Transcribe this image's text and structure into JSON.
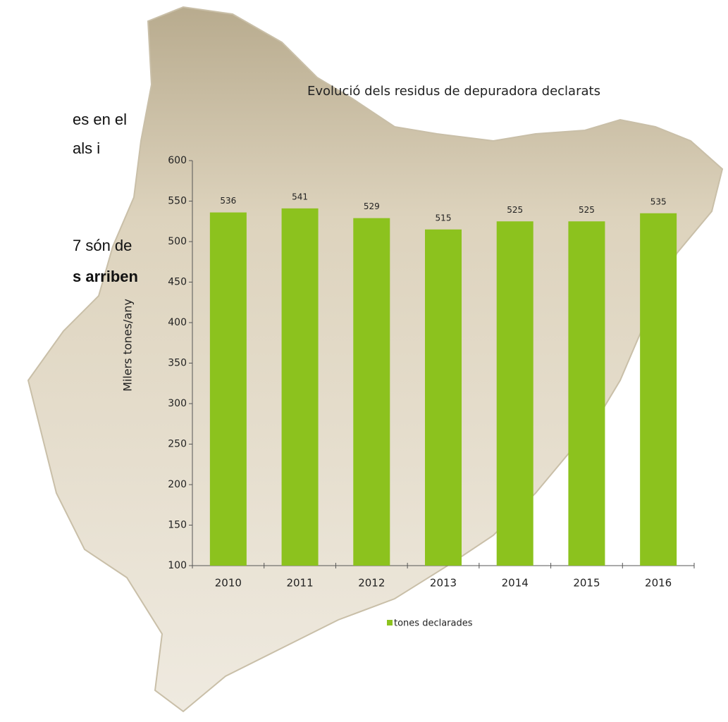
{
  "side_text": [
    "es en el",
    "als i",
    "7 són de",
    "s arriben"
  ],
  "chart_data": {
    "type": "bar",
    "title": "Evolució dels residus de depuradora declarats",
    "y_label": "Milers tones/any",
    "categories": [
      "2010",
      "2011",
      "2012",
      "2013",
      "2014",
      "2015",
      "2016"
    ],
    "series": [
      {
        "name": "tones declarades",
        "color": "#8cc21e",
        "values": [
          536,
          541,
          529,
          515,
          525,
          525,
          535
        ]
      }
    ],
    "ylim": [
      100,
      600
    ],
    "yticks": [
      100,
      150,
      200,
      250,
      300,
      350,
      400,
      450,
      500,
      550,
      600
    ],
    "legend": "bottom"
  }
}
